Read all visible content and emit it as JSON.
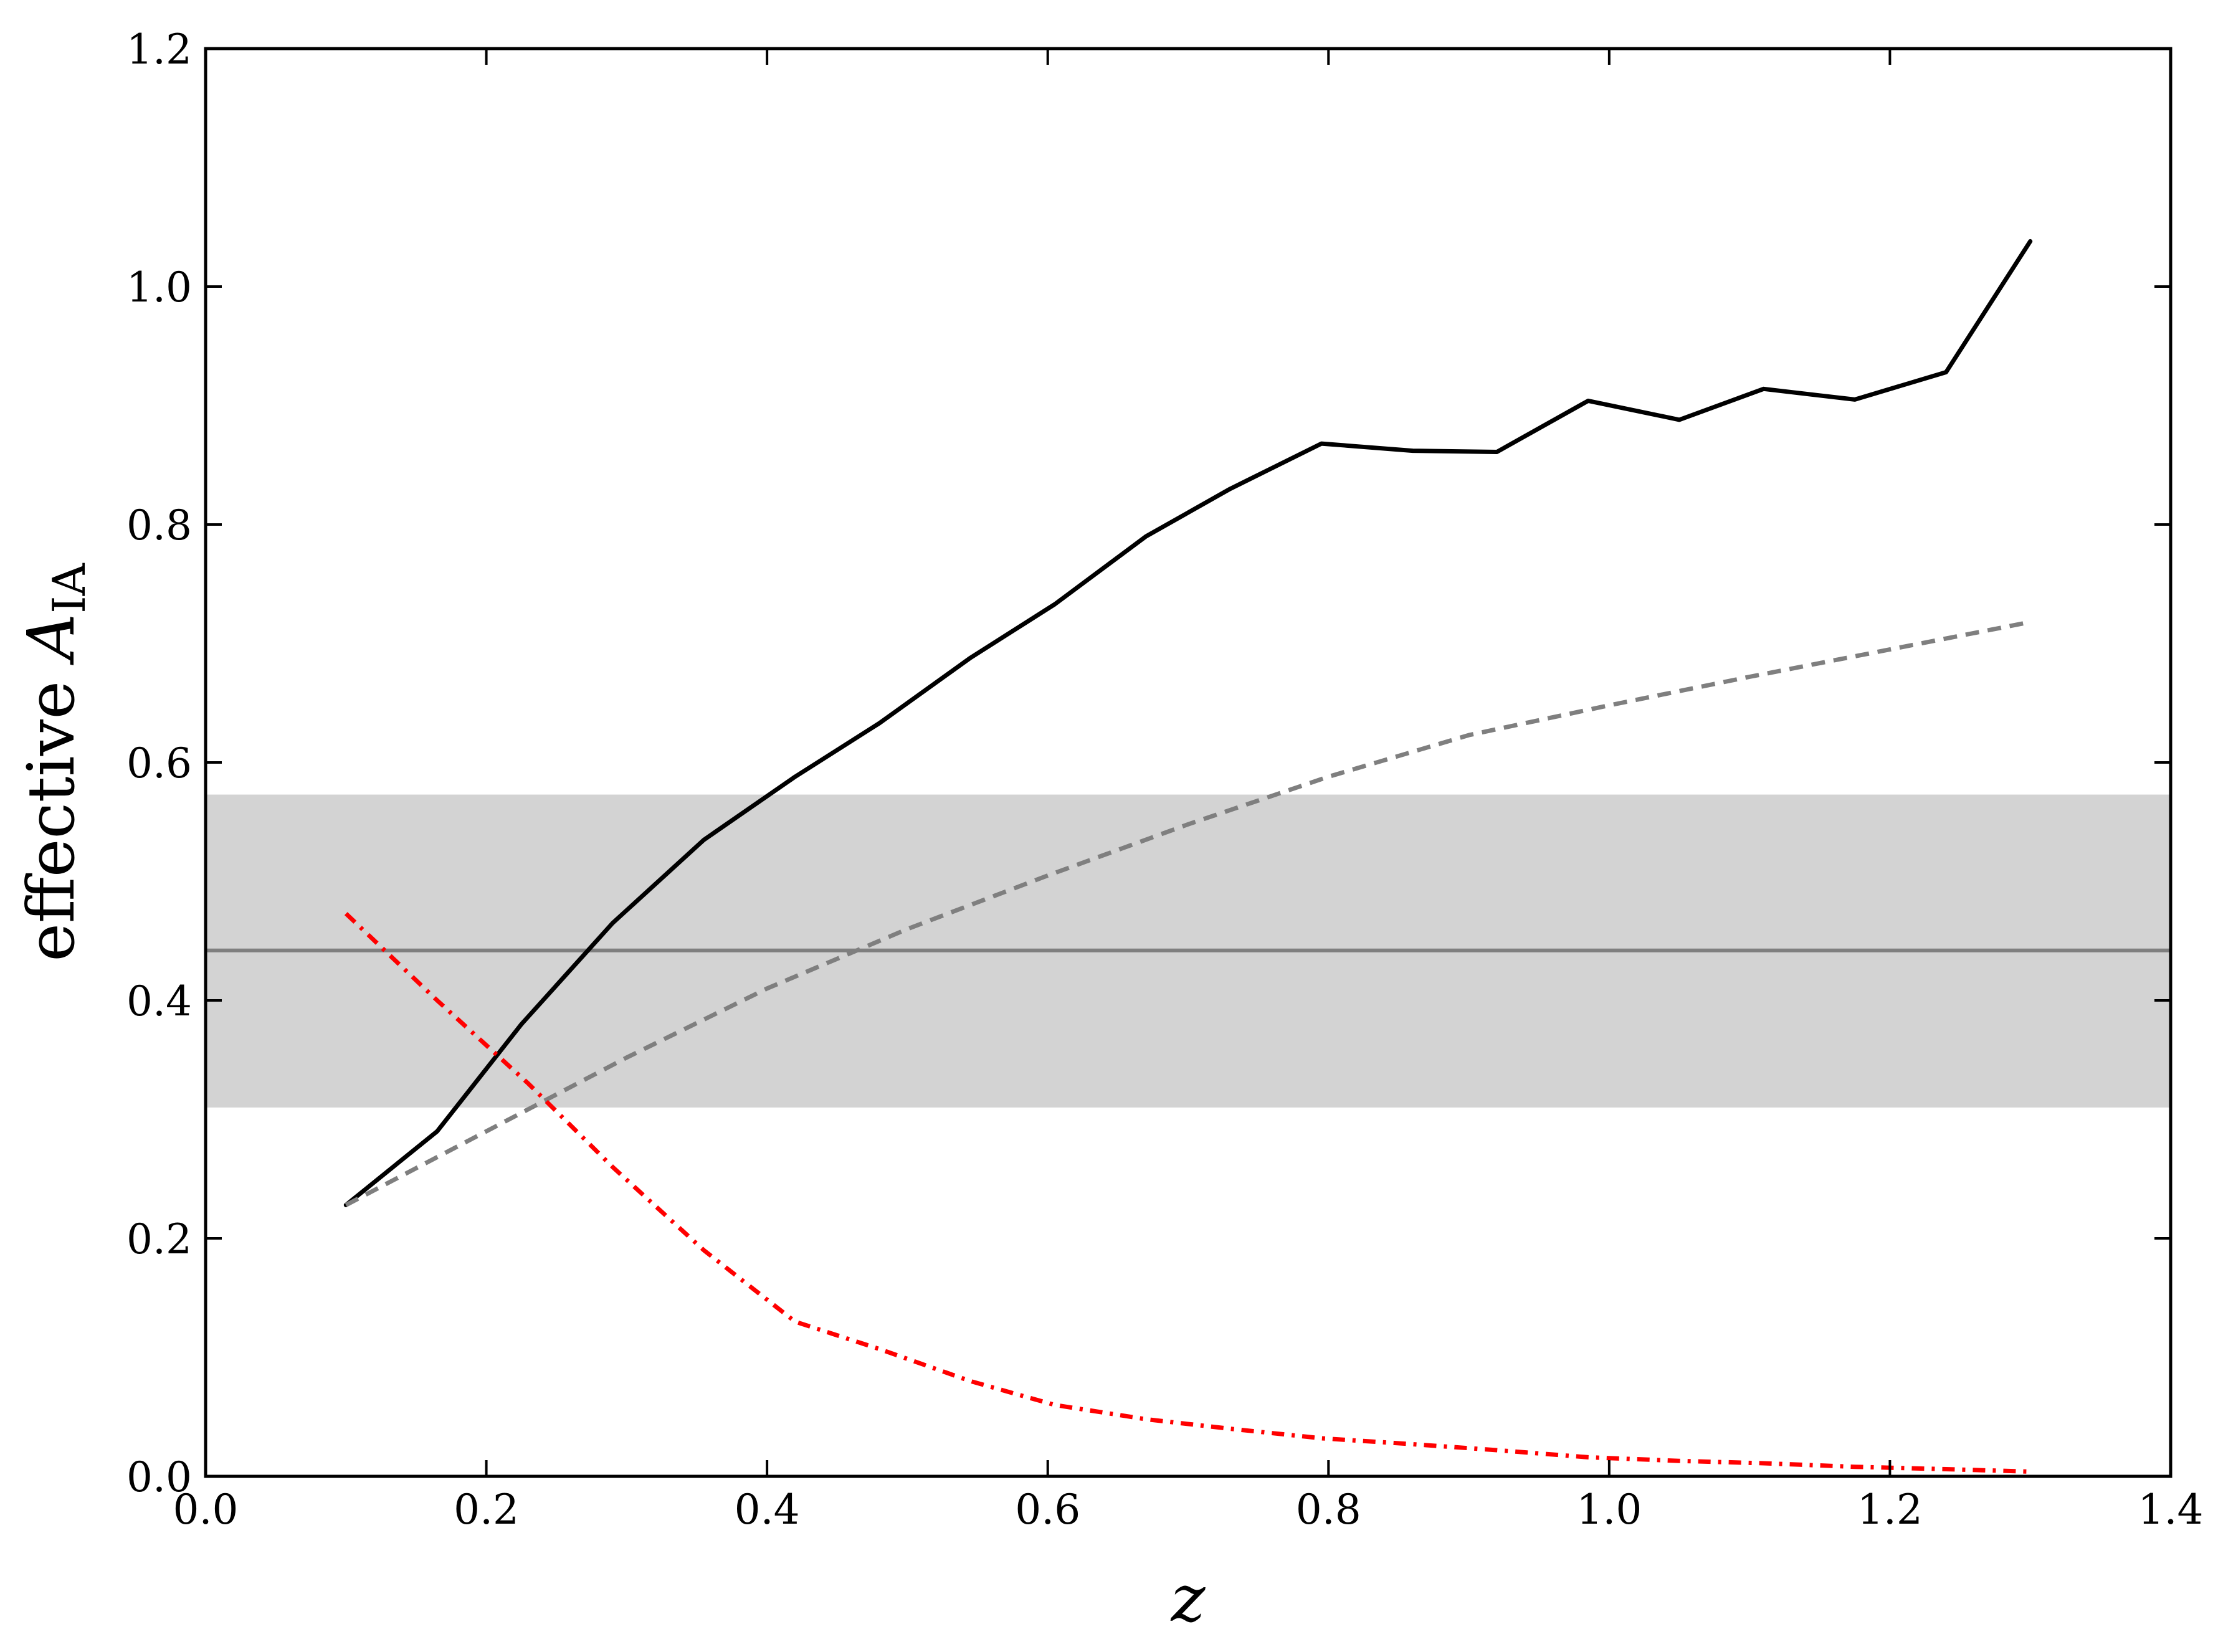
{
  "chart_data": {
    "type": "line",
    "xlabel": "z",
    "ylabel": {
      "prefix": "effective ",
      "symbol": "A",
      "subscript": "IA"
    },
    "xlim": [
      0.0,
      1.4
    ],
    "ylim": [
      0.0,
      1.2
    ],
    "xticks": [
      "0.0",
      "0.2",
      "0.4",
      "0.6",
      "0.8",
      "1.0",
      "1.2",
      "1.4"
    ],
    "yticks": [
      "0.0",
      "0.2",
      "0.4",
      "0.6",
      "0.8",
      "1.0",
      "1.2"
    ],
    "band": {
      "y_low": 0.31,
      "y_high": 0.573,
      "center": 0.442,
      "color": "#d3d3d3",
      "center_color": "#7f7f7f"
    },
    "series": [
      {
        "style": "solid",
        "color": "#000000",
        "x": [
          0.1,
          0.165,
          0.225,
          0.29,
          0.355,
          0.42,
          0.48,
          0.545,
          0.605,
          0.67,
          0.73,
          0.795,
          0.86,
          0.92,
          0.985,
          1.05,
          1.11,
          1.175,
          1.24,
          1.3
        ],
        "y": [
          0.228,
          0.29,
          0.38,
          0.465,
          0.535,
          0.588,
          0.633,
          0.688,
          0.733,
          0.79,
          0.83,
          0.868,
          0.862,
          0.861,
          0.904,
          0.888,
          0.914,
          0.905,
          0.928,
          1.038
        ]
      },
      {
        "style": "dashed",
        "color": "#7f7f7f",
        "x": [
          0.1,
          0.2,
          0.3,
          0.4,
          0.5,
          0.6,
          0.7,
          0.8,
          0.9,
          1.0,
          1.1,
          1.2,
          1.3
        ],
        "y": [
          0.228,
          0.29,
          0.352,
          0.41,
          0.46,
          0.505,
          0.548,
          0.588,
          0.623,
          0.648,
          0.672,
          0.695,
          0.718
        ]
      },
      {
        "style": "dashdot",
        "color": "#ff0000",
        "x": [
          0.1,
          0.165,
          0.23,
          0.29,
          0.355,
          0.42,
          0.48,
          0.545,
          0.605,
          0.67,
          0.73,
          0.795,
          0.86,
          0.92,
          0.985,
          1.05,
          1.11,
          1.175,
          1.24,
          1.3
        ],
        "y": [
          0.473,
          0.4,
          0.33,
          0.26,
          0.19,
          0.13,
          0.107,
          0.08,
          0.06,
          0.048,
          0.04,
          0.032,
          0.027,
          0.022,
          0.016,
          0.013,
          0.011,
          0.008,
          0.006,
          0.004
        ]
      }
    ]
  }
}
